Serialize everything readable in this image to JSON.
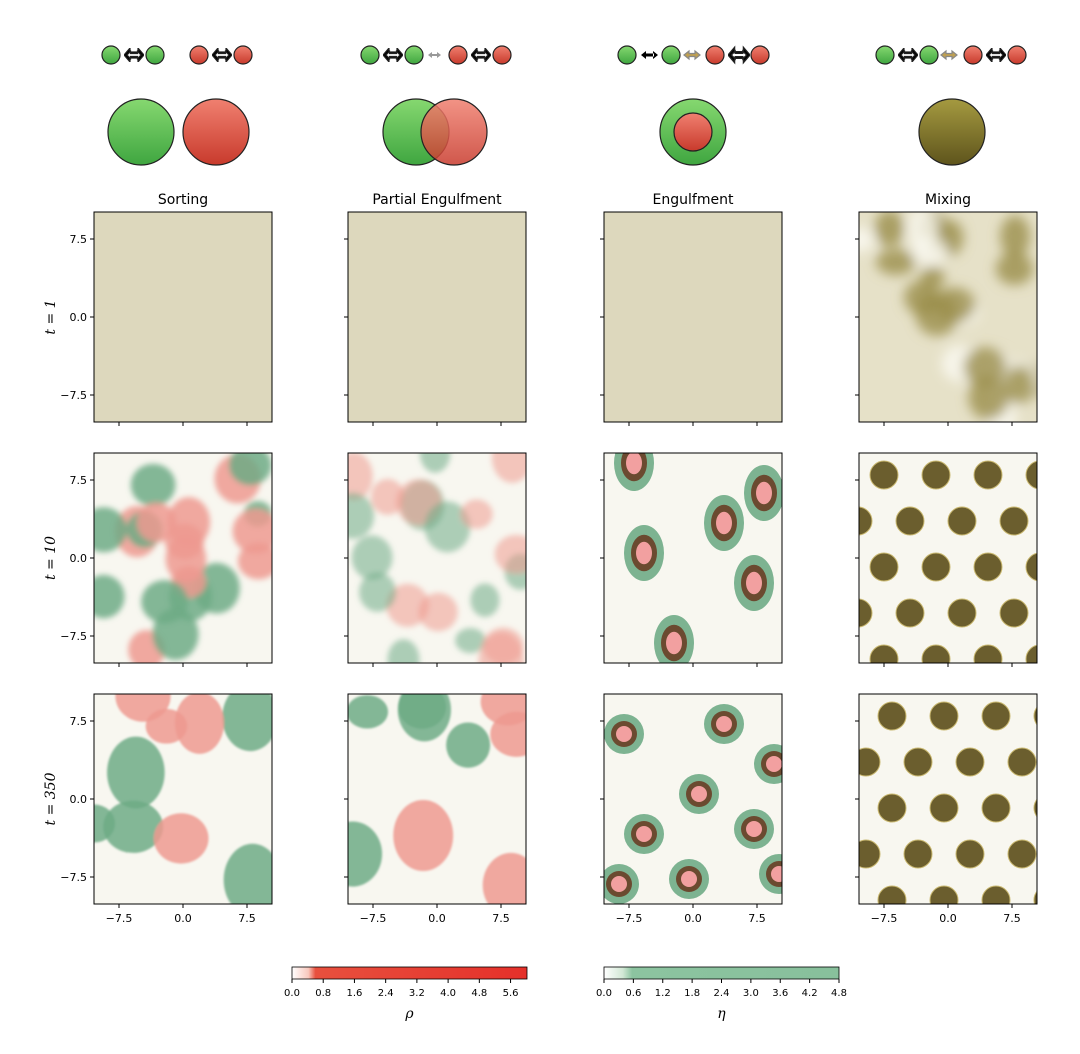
{
  "columns": [
    {
      "title": "Sorting"
    },
    {
      "title": "Partial Engulfment"
    },
    {
      "title": "Engulfment"
    },
    {
      "title": "Mixing"
    }
  ],
  "rows": [
    {
      "label": "t = 1"
    },
    {
      "label": "t = 10"
    },
    {
      "label": "t = 350"
    }
  ],
  "axes": {
    "xticks": [
      "−7.5",
      "0.0",
      "7.5"
    ],
    "yticks": [
      "7.5",
      "0.0",
      "−7.5"
    ]
  },
  "colorbars": [
    {
      "label": "ρ",
      "ticks": [
        "0.0",
        "0.8",
        "1.6",
        "2.4",
        "3.2",
        "4.0",
        "4.8",
        "5.6"
      ]
    },
    {
      "label": "η",
      "ticks": [
        "0.0",
        "0.6",
        "1.2",
        "1.8",
        "2.4",
        "3.0",
        "3.6",
        "4.2",
        "4.8"
      ]
    }
  ]
}
